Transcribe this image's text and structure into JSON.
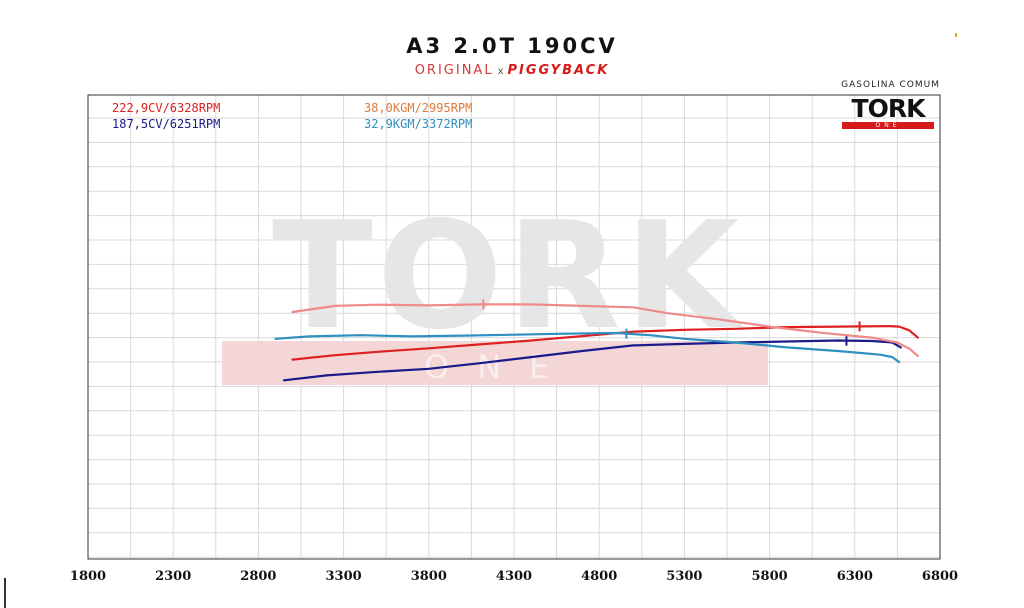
{
  "title": "A3 2.0T 190CV",
  "subtitle": {
    "original": "ORIGINAL",
    "separator": "x",
    "piggyback": "PIGGYBACK"
  },
  "fuel": "GASOLINA COMUM",
  "logo": {
    "main": "TORK",
    "sub": "ONE"
  },
  "colors": {
    "power_piggyback": "#de2020",
    "power_original": "#1a1a8a",
    "torque_piggyback": "#f08a8a",
    "torque_original": "#2e8fc0",
    "label_torque_piggyback": "#e07a3a"
  },
  "chart_data": {
    "type": "line",
    "title": "A3 2.0T 190CV",
    "xlabel": "",
    "ylabel": "",
    "xlim": [
      1800,
      6800
    ],
    "x_ticks": [
      1800,
      2300,
      2800,
      3300,
      3800,
      4300,
      4800,
      5300,
      5800,
      6300,
      6800
    ],
    "grid": true,
    "legend_position": "top-left",
    "legend": {
      "power_piggyback": "222,9CV/6328RPM",
      "power_original": "187,5CV/6251RPM",
      "torque_piggyback": "38,0KGM/2995RPM",
      "torque_original": "32,9KGM/3372RPM"
    },
    "series": [
      {
        "key": "power_piggyback",
        "color": "#de2020",
        "marker_x": 6328,
        "points": [
          [
            3000,
            0.1
          ],
          [
            3250,
            0.28
          ],
          [
            3500,
            0.42
          ],
          [
            3800,
            0.56
          ],
          [
            4100,
            0.72
          ],
          [
            4400,
            0.88
          ],
          [
            4700,
            1.06
          ],
          [
            5000,
            1.24
          ],
          [
            5300,
            1.32
          ],
          [
            5600,
            1.36
          ],
          [
            5900,
            1.43
          ],
          [
            6200,
            1.45
          ],
          [
            6500,
            1.47
          ],
          [
            6560,
            1.45
          ],
          [
            6620,
            1.3
          ],
          [
            6670,
            1.0
          ]
        ]
      },
      {
        "key": "power_original",
        "color": "#1a1a8a",
        "marker_x": 6251,
        "points": [
          [
            2950,
            -0.75
          ],
          [
            3200,
            -0.55
          ],
          [
            3500,
            -0.4
          ],
          [
            3800,
            -0.28
          ],
          [
            4100,
            -0.05
          ],
          [
            4400,
            0.2
          ],
          [
            4700,
            0.45
          ],
          [
            5000,
            0.68
          ],
          [
            5300,
            0.74
          ],
          [
            5600,
            0.8
          ],
          [
            5900,
            0.84
          ],
          [
            6200,
            0.88
          ],
          [
            6400,
            0.86
          ],
          [
            6520,
            0.8
          ],
          [
            6570,
            0.6
          ]
        ]
      },
      {
        "key": "torque_piggyback",
        "color": "#f08a8a",
        "marker_x": 4120,
        "points": [
          [
            3000,
            2.05
          ],
          [
            3250,
            2.3
          ],
          [
            3500,
            2.35
          ],
          [
            3800,
            2.32
          ],
          [
            4100,
            2.36
          ],
          [
            4400,
            2.36
          ],
          [
            4700,
            2.3
          ],
          [
            5000,
            2.24
          ],
          [
            5200,
            2.0
          ],
          [
            5500,
            1.75
          ],
          [
            5800,
            1.45
          ],
          [
            6100,
            1.2
          ],
          [
            6400,
            1.0
          ],
          [
            6550,
            0.8
          ],
          [
            6620,
            0.55
          ],
          [
            6670,
            0.25
          ]
        ]
      },
      {
        "key": "torque_original",
        "color": "#2e8fc0",
        "marker_x": 4960,
        "points": [
          [
            2900,
            0.95
          ],
          [
            3100,
            1.05
          ],
          [
            3400,
            1.1
          ],
          [
            3700,
            1.05
          ],
          [
            4000,
            1.08
          ],
          [
            4300,
            1.12
          ],
          [
            4600,
            1.16
          ],
          [
            4900,
            1.19
          ],
          [
            5100,
            1.1
          ],
          [
            5300,
            0.95
          ],
          [
            5600,
            0.8
          ],
          [
            5900,
            0.6
          ],
          [
            6200,
            0.45
          ],
          [
            6450,
            0.3
          ],
          [
            6520,
            0.2
          ],
          [
            6560,
            0.0
          ]
        ]
      }
    ]
  }
}
